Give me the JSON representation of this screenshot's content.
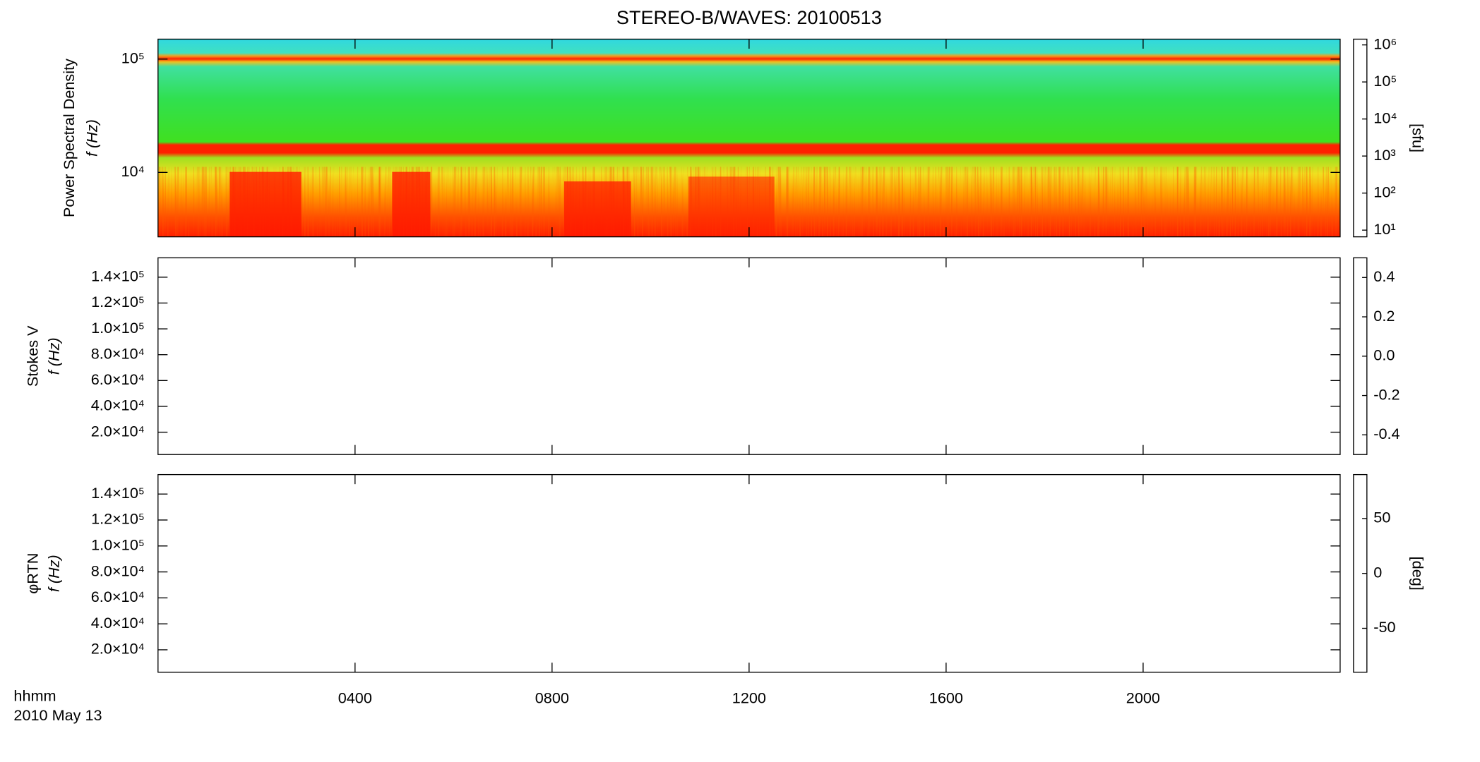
{
  "chart_data": [
    {
      "type": "spectrogram",
      "title": "STEREO-B/WAVES: 20100513",
      "ylabel": "Power Spectral Density",
      "ylabel2": "f (Hz)",
      "yscale": "log",
      "ylim": [
        2700,
        150000
      ],
      "yticks": [
        {
          "value": 10000,
          "label": "10⁴"
        },
        {
          "value": 100000,
          "label": "10⁵"
        }
      ],
      "colorbar": {
        "label": "[sfu]",
        "scale": "log",
        "lim": [
          6.6,
          1430000
        ],
        "ticks": [
          {
            "value": 10,
            "label": "10¹"
          },
          {
            "value": 100,
            "label": "10²"
          },
          {
            "value": 1000,
            "label": "10³"
          },
          {
            "value": 10000,
            "label": "10⁴"
          },
          {
            "value": 100000,
            "label": "10⁵"
          },
          {
            "value": 1000000,
            "label": "10⁶"
          }
        ]
      }
    },
    {
      "type": "spectrogram",
      "ylabel": "Stokes V",
      "ylabel2": "f (Hz)",
      "yscale": "linear",
      "ylim": [
        2700,
        155000
      ],
      "yticks": [
        {
          "value": 20000,
          "label": "2.0×10⁴"
        },
        {
          "value": 40000,
          "label": "4.0×10⁴"
        },
        {
          "value": 60000,
          "label": "6.0×10⁴"
        },
        {
          "value": 80000,
          "label": "8.0×10⁴"
        },
        {
          "value": 100000,
          "label": "1.0×10⁵"
        },
        {
          "value": 120000,
          "label": "1.2×10⁵"
        },
        {
          "value": 140000,
          "label": "1.4×10⁵"
        }
      ],
      "colorbar": {
        "scale": "linear",
        "lim": [
          -0.5,
          0.5
        ],
        "ticks": [
          {
            "value": -0.4,
            "label": "-0.4"
          },
          {
            "value": -0.2,
            "label": "-0.2"
          },
          {
            "value": 0,
            "label": "0.0"
          },
          {
            "value": 0.2,
            "label": "0.2"
          },
          {
            "value": 0.4,
            "label": "0.4"
          }
        ]
      }
    },
    {
      "type": "spectrogram",
      "ylabel": "φRTN",
      "ylabel2": "f (Hz)",
      "yscale": "linear",
      "ylim": [
        2700,
        155000
      ],
      "yticks": [
        {
          "value": 20000,
          "label": "2.0×10⁴"
        },
        {
          "value": 40000,
          "label": "4.0×10⁴"
        },
        {
          "value": 60000,
          "label": "6.0×10⁴"
        },
        {
          "value": 80000,
          "label": "8.0×10⁴"
        },
        {
          "value": 100000,
          "label": "1.0×10⁵"
        },
        {
          "value": 120000,
          "label": "1.2×10⁵"
        },
        {
          "value": 140000,
          "label": "1.4×10⁵"
        }
      ],
      "colorbar": {
        "label": "[deg]",
        "scale": "linear",
        "lim": [
          -90,
          90
        ],
        "ticks": [
          -50,
          0,
          50
        ]
      },
      "xlabel": "hhmm",
      "date": "2010 May 13",
      "xlim": [
        0,
        24
      ],
      "xticks": [
        {
          "value": 4,
          "label": "0400"
        },
        {
          "value": 8,
          "label": "0800"
        },
        {
          "value": 12,
          "label": "1200"
        },
        {
          "value": 16,
          "label": "1600"
        },
        {
          "value": 20,
          "label": "2000"
        }
      ]
    }
  ]
}
